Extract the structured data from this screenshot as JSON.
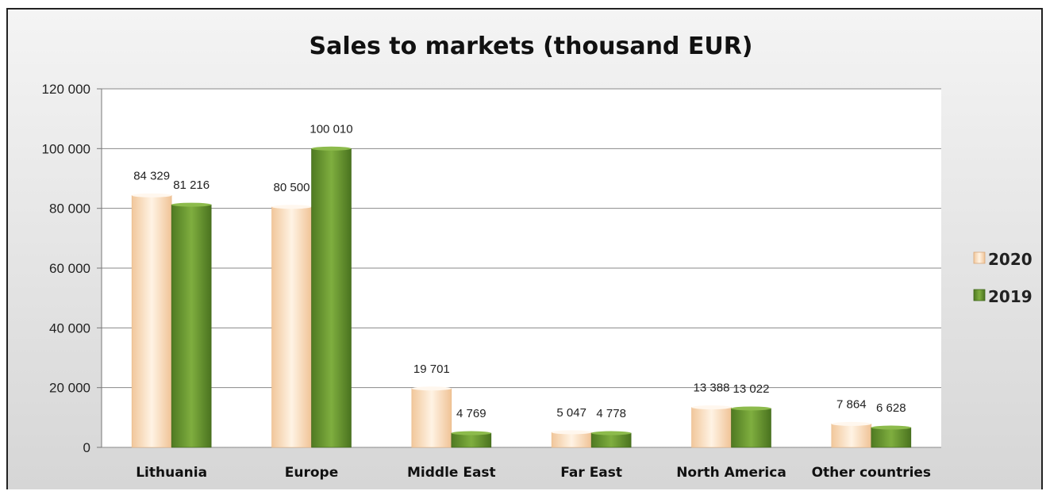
{
  "chart_data": {
    "type": "bar",
    "title": "Sales to markets (thousand EUR)",
    "xlabel": "",
    "ylabel": "",
    "categories": [
      "Lithuania",
      "Europe",
      "Middle East",
      "Far East",
      "North America",
      "Other countries"
    ],
    "series": [
      {
        "name": "2020",
        "color": "#f6cfa6",
        "values": [
          84329,
          80500,
          19701,
          5047,
          13388,
          7864
        ],
        "labels": [
          "84 329",
          "80 500",
          "19 701",
          "5 047",
          "13 388",
          "7 864"
        ]
      },
      {
        "name": "2019",
        "color": "#5e8a2a",
        "values": [
          81216,
          100010,
          4769,
          4778,
          13022,
          6628
        ],
        "labels": [
          "81 216",
          "100 010",
          "4 769",
          "4 778",
          "13 022",
          "6 628"
        ]
      }
    ],
    "ylim": [
      0,
      120000
    ],
    "yticks": [
      0,
      20000,
      40000,
      60000,
      80000,
      100000,
      120000
    ],
    "ytick_labels": [
      "0",
      "20 000",
      "40 000",
      "60 000",
      "80 000",
      "100 000",
      "120 000"
    ],
    "grid": true,
    "legend": "right"
  }
}
